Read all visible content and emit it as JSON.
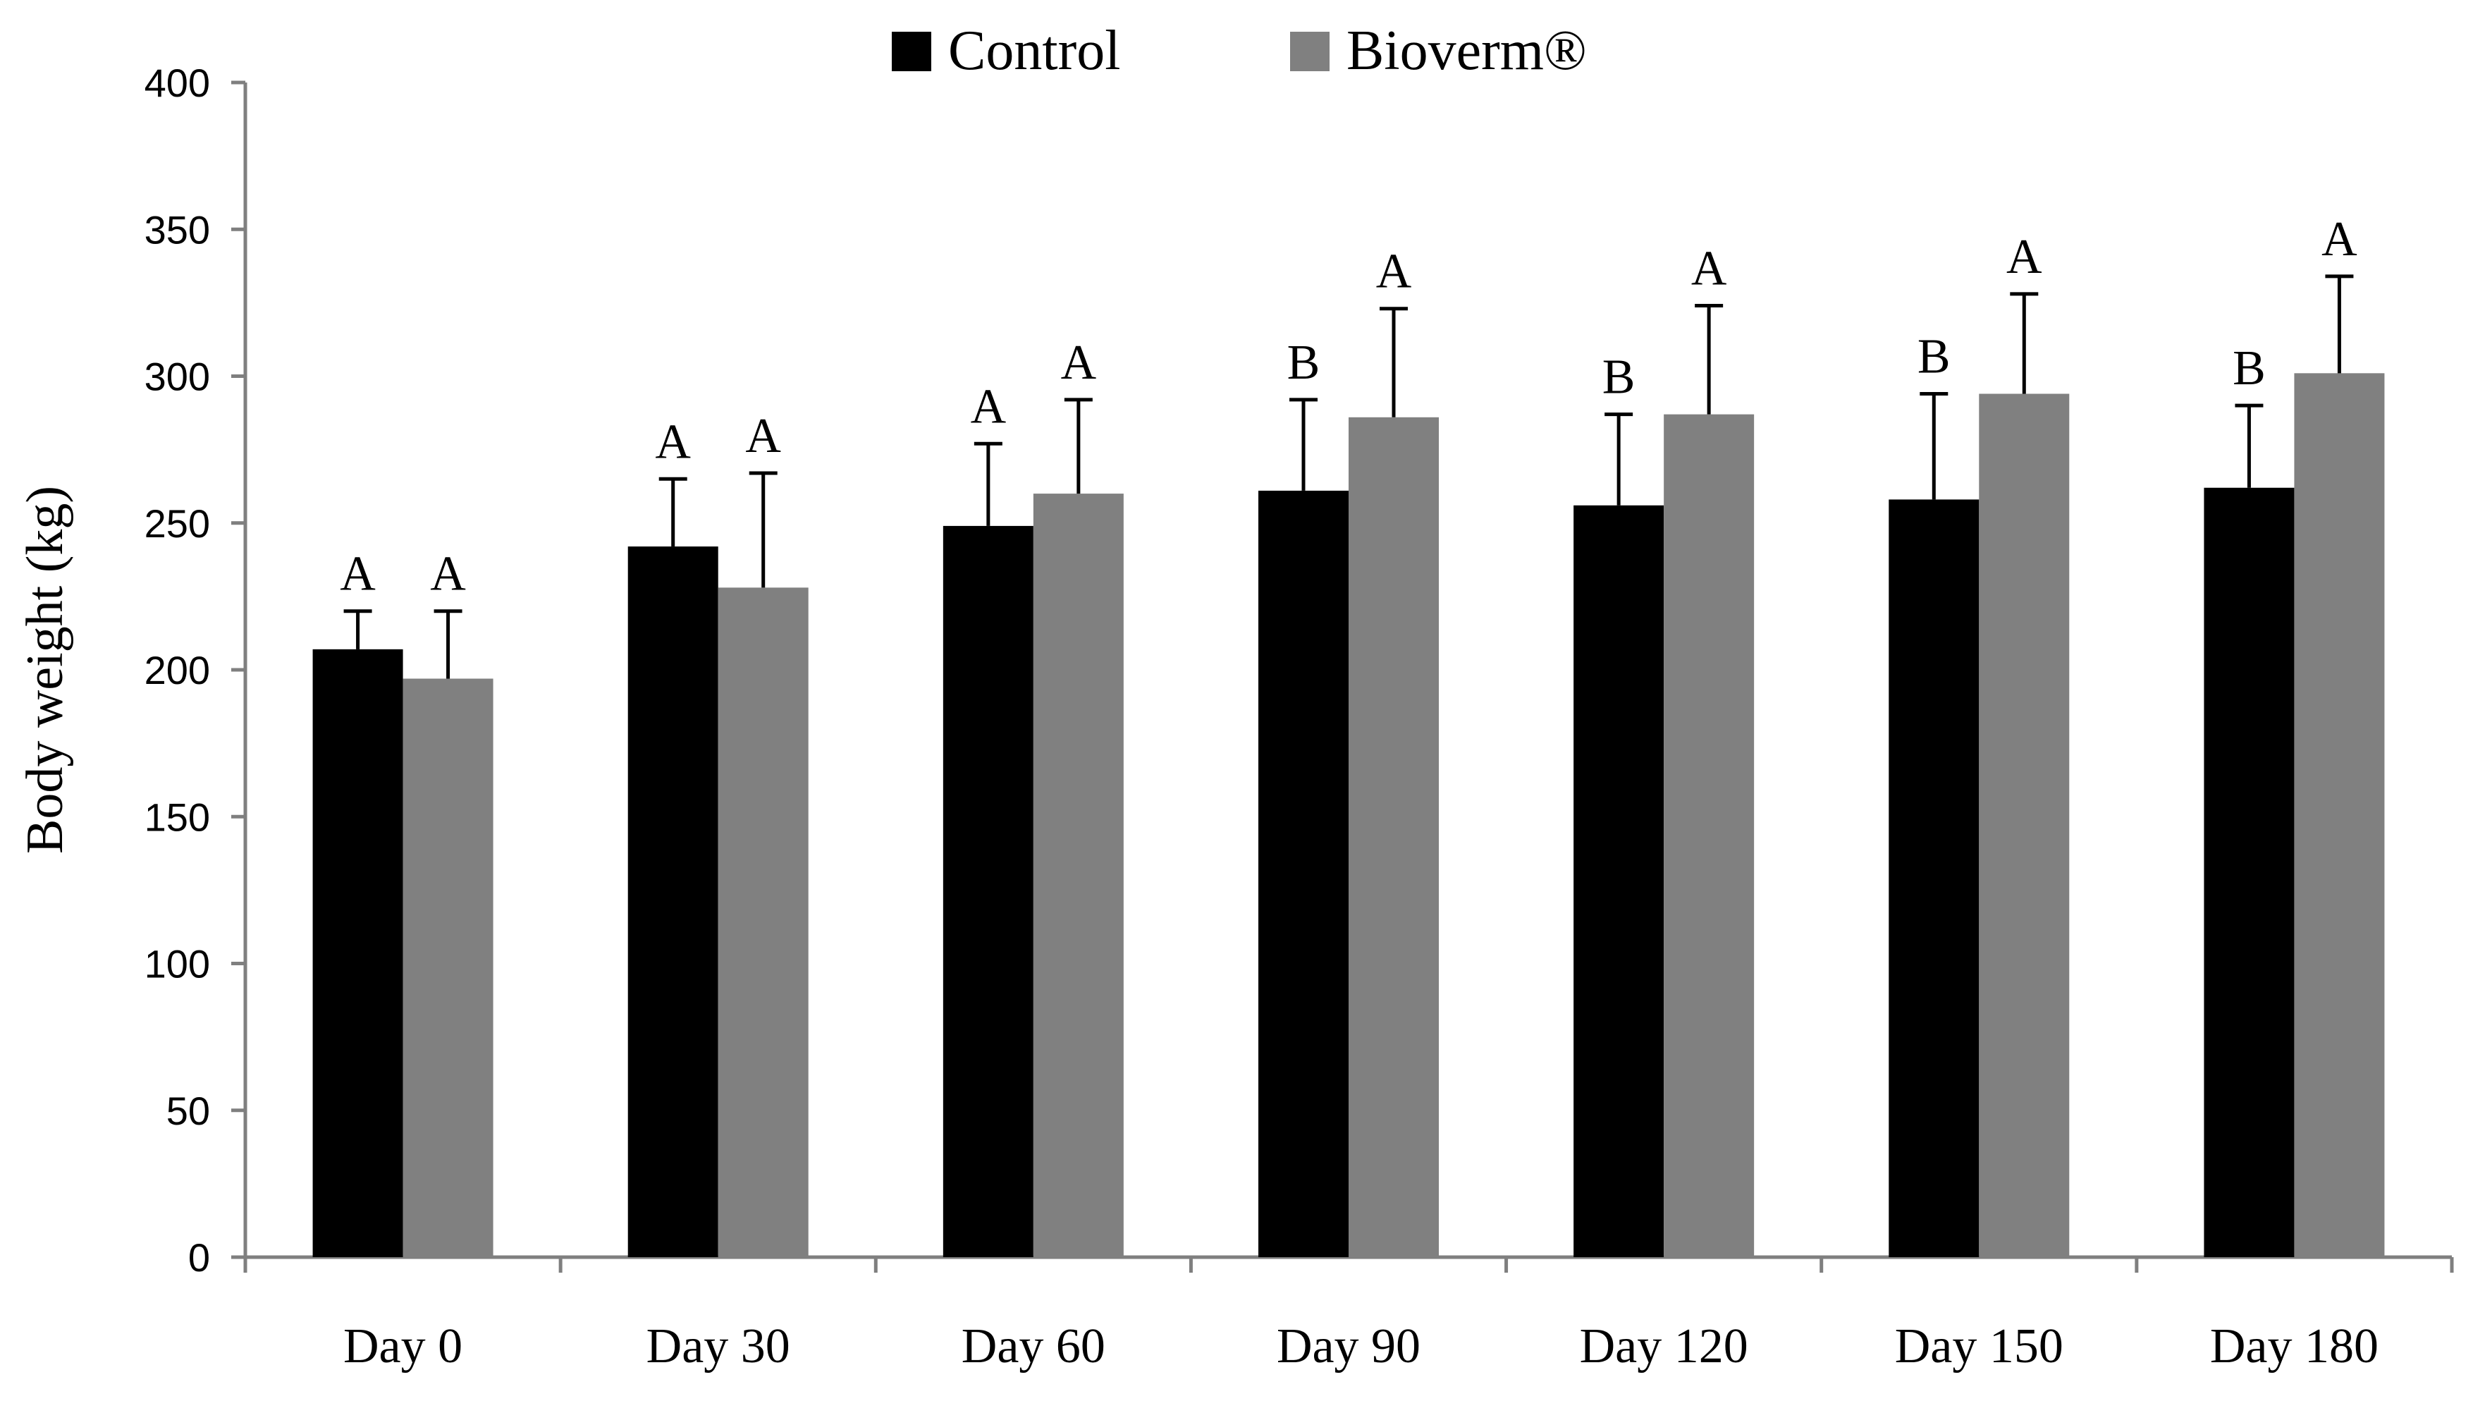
{
  "chart_data": {
    "type": "bar",
    "title": "",
    "xlabel": "",
    "ylabel": "Body weight (kg)",
    "ylim": [
      0,
      400
    ],
    "yticks": [
      0,
      50,
      100,
      150,
      200,
      250,
      300,
      350,
      400
    ],
    "categories": [
      "Day 0",
      "Day 30",
      "Day 60",
      "Day 90",
      "Day 120",
      "Day 150",
      "Day 180"
    ],
    "legend_position": "top-center",
    "grid": false,
    "series": [
      {
        "name": "Control",
        "color": "#000000",
        "values": [
          207,
          242,
          249,
          261,
          256,
          258,
          262
        ],
        "error_upper": [
          220,
          265,
          277,
          292,
          287,
          294,
          290
        ],
        "significance": [
          "A",
          "A",
          "A",
          "B",
          "B",
          "B",
          "B"
        ]
      },
      {
        "name": "Bioverm®",
        "color": "#808080",
        "values": [
          197,
          228,
          260,
          286,
          287,
          294,
          301
        ],
        "error_upper": [
          220,
          267,
          292,
          323,
          324,
          328,
          334
        ],
        "significance": [
          "A",
          "A",
          "A",
          "A",
          "A",
          "A",
          "A"
        ]
      }
    ]
  }
}
